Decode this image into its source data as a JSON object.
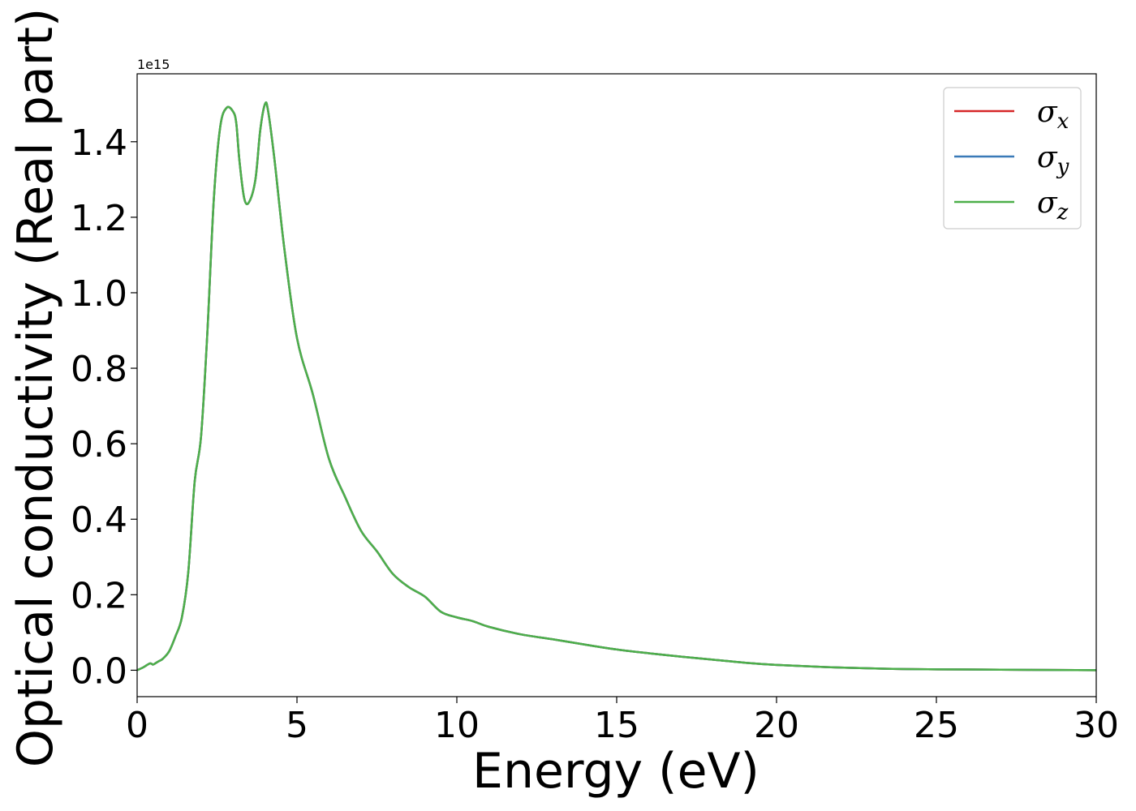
{
  "chart_data": {
    "type": "line",
    "title": "",
    "xlabel": "Energy (eV)",
    "ylabel": "Optical conductivity (Real part)",
    "y_offset_label": "1e15",
    "xlim": [
      0,
      30
    ],
    "ylim": [
      -0.07,
      1.58
    ],
    "x_ticks": [
      0,
      5,
      10,
      15,
      20,
      25,
      30
    ],
    "x_tick_labels": [
      "0",
      "5",
      "10",
      "15",
      "20",
      "25",
      "30"
    ],
    "y_ticks": [
      0.0,
      0.2,
      0.4,
      0.6,
      0.8,
      1.0,
      1.2,
      1.4
    ],
    "y_tick_labels": [
      "0.0",
      "0.2",
      "0.4",
      "0.6",
      "0.8",
      "1.0",
      "1.2",
      "1.4"
    ],
    "grid": false,
    "legend_position": "top-right",
    "legend": [
      {
        "sym": "σ",
        "sub": "x",
        "color": "#d62728"
      },
      {
        "sym": "σ",
        "sub": "y",
        "color": "#3a7ab8"
      },
      {
        "sym": "σ",
        "sub": "z",
        "color": "#4daf4a"
      }
    ],
    "x": [
      0,
      0.2,
      0.4,
      0.5,
      0.6,
      0.7,
      0.8,
      1.0,
      1.2,
      1.4,
      1.6,
      1.8,
      2.0,
      2.2,
      2.4,
      2.6,
      2.8,
      3.0,
      3.1,
      3.2,
      3.35,
      3.5,
      3.7,
      3.85,
      4.0,
      4.1,
      4.3,
      4.6,
      5.0,
      5.5,
      6.0,
      6.5,
      7.0,
      7.5,
      8.0,
      8.5,
      9.0,
      9.5,
      10.0,
      10.5,
      11.0,
      12.0,
      13.0,
      14.0,
      15.0,
      16.0,
      17.0,
      18.0,
      19.0,
      20.0,
      22.0,
      24.0,
      26.0,
      28.0,
      30.0
    ],
    "series": [
      {
        "values": [
          0.0,
          0.008,
          0.018,
          0.015,
          0.02,
          0.025,
          0.03,
          0.05,
          0.09,
          0.14,
          0.26,
          0.5,
          0.62,
          0.9,
          1.25,
          1.44,
          1.49,
          1.48,
          1.45,
          1.35,
          1.25,
          1.24,
          1.3,
          1.43,
          1.5,
          1.48,
          1.35,
          1.12,
          0.88,
          0.73,
          0.56,
          0.46,
          0.37,
          0.315,
          0.255,
          0.22,
          0.195,
          0.155,
          0.14,
          0.13,
          0.115,
          0.095,
          0.082,
          0.068,
          0.055,
          0.045,
          0.036,
          0.028,
          0.02,
          0.014,
          0.007,
          0.003,
          0.002,
          0.001,
          0.0
        ]
      },
      {
        "values": [
          0.0,
          0.008,
          0.018,
          0.015,
          0.02,
          0.025,
          0.03,
          0.05,
          0.09,
          0.14,
          0.26,
          0.5,
          0.62,
          0.9,
          1.25,
          1.44,
          1.49,
          1.48,
          1.45,
          1.35,
          1.25,
          1.24,
          1.3,
          1.43,
          1.5,
          1.48,
          1.35,
          1.12,
          0.88,
          0.73,
          0.56,
          0.46,
          0.37,
          0.315,
          0.255,
          0.22,
          0.195,
          0.155,
          0.14,
          0.13,
          0.115,
          0.095,
          0.082,
          0.068,
          0.055,
          0.045,
          0.036,
          0.028,
          0.02,
          0.014,
          0.007,
          0.003,
          0.002,
          0.001,
          0.0
        ]
      },
      {
        "values": [
          0.0,
          0.008,
          0.018,
          0.015,
          0.02,
          0.025,
          0.03,
          0.05,
          0.09,
          0.14,
          0.26,
          0.5,
          0.62,
          0.9,
          1.25,
          1.44,
          1.49,
          1.48,
          1.45,
          1.35,
          1.25,
          1.24,
          1.3,
          1.43,
          1.5,
          1.48,
          1.35,
          1.12,
          0.88,
          0.73,
          0.56,
          0.46,
          0.37,
          0.315,
          0.255,
          0.22,
          0.195,
          0.155,
          0.14,
          0.13,
          0.115,
          0.095,
          0.082,
          0.068,
          0.055,
          0.045,
          0.036,
          0.028,
          0.02,
          0.014,
          0.007,
          0.003,
          0.002,
          0.001,
          0.0
        ]
      }
    ]
  }
}
